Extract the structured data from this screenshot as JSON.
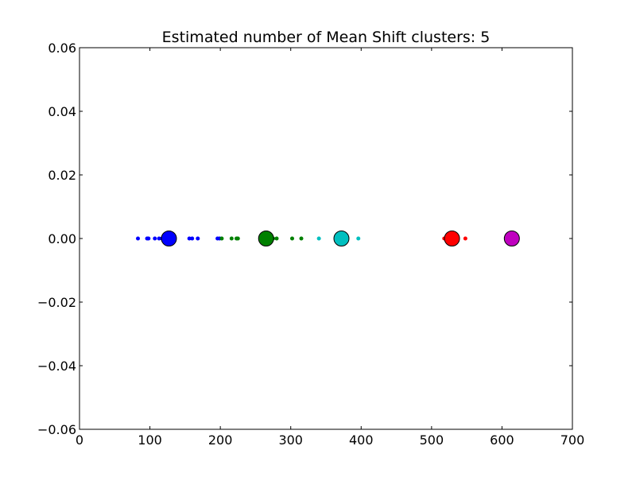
{
  "chart_data": {
    "type": "scatter",
    "title": "Estimated number of Mean Shift clusters: 5",
    "xlabel": "",
    "ylabel": "",
    "xlim": [
      0,
      700
    ],
    "ylim": [
      -0.06,
      0.06
    ],
    "x_ticks": [
      0,
      100,
      200,
      300,
      400,
      500,
      600,
      700
    ],
    "x_tick_labels": [
      "0",
      "100",
      "200",
      "300",
      "400",
      "500",
      "600",
      "700"
    ],
    "y_ticks": [
      0.06,
      0.04,
      0.02,
      0.0,
      -0.02,
      -0.04,
      -0.06
    ],
    "y_tick_labels": [
      "0.06",
      "0.04",
      "0.02",
      "0.00",
      "−0.02",
      "−0.04",
      "−0.06"
    ],
    "grid": false,
    "legend": "none",
    "series": [
      {
        "color": "#0000ff",
        "points": [
          [
            83,
            0
          ],
          [
            96,
            0
          ],
          [
            98,
            0
          ],
          [
            107,
            0
          ],
          [
            113,
            0
          ],
          [
            117,
            0
          ],
          [
            120,
            0
          ],
          [
            135,
            0
          ],
          [
            156,
            0
          ],
          [
            160,
            0
          ],
          [
            168,
            0
          ],
          [
            196,
            0
          ],
          [
            199,
            0
          ]
        ],
        "center": [
          127,
          0
        ]
      },
      {
        "color": "#008000",
        "points": [
          [
            202,
            0
          ],
          [
            216,
            0
          ],
          [
            223,
            0
          ],
          [
            225,
            0
          ],
          [
            268,
            0
          ],
          [
            275,
            0
          ],
          [
            280,
            0
          ],
          [
            302,
            0
          ],
          [
            315,
            0
          ]
        ],
        "center": [
          265,
          0
        ]
      },
      {
        "color": "#00bfbf",
        "points": [
          [
            340,
            0
          ],
          [
            380,
            0
          ],
          [
            396,
            0
          ]
        ],
        "center": [
          372,
          0
        ]
      },
      {
        "color": "#ff0000",
        "points": [
          [
            518,
            0
          ],
          [
            522,
            0
          ],
          [
            548,
            0
          ]
        ],
        "center": [
          529,
          0
        ]
      },
      {
        "color": "#bf00bf",
        "points": [],
        "center": [
          614,
          0
        ]
      }
    ]
  }
}
